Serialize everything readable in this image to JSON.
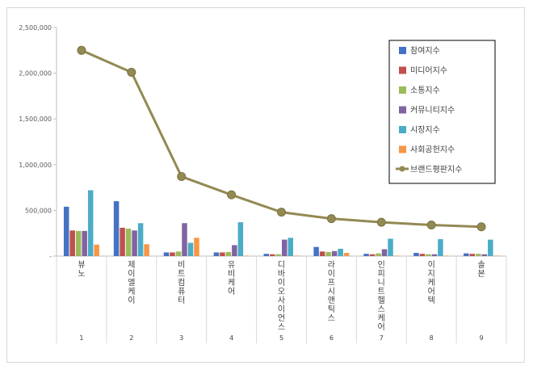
{
  "chart_data": {
    "type": "bar",
    "title": "",
    "xlabel": "",
    "ylabel": "",
    "ylim": [
      0,
      2500000
    ],
    "yticks": [
      "-",
      "500,000",
      "1,000,000",
      "1,500,000",
      "2,000,000",
      "2,500,000"
    ],
    "ytick_values": [
      0,
      500000,
      1000000,
      1500000,
      2000000,
      2500000
    ],
    "categories": [
      "뷰노",
      "제이엘케이",
      "비트컴퓨터",
      "유비케어",
      "디바이오사이언스",
      "라이프시맨틱스",
      "인피니트헬스케어",
      "이지케어텍",
      "솔본"
    ],
    "ranks": [
      "1",
      "2",
      "3",
      "4",
      "5",
      "6",
      "7",
      "8",
      "9"
    ],
    "legend_position": "top-right",
    "grid": false,
    "series": [
      {
        "name": "참여지수",
        "color": "#4472c4",
        "values": [
          540000,
          600000,
          40000,
          40000,
          25000,
          100000,
          25000,
          35000,
          30000
        ]
      },
      {
        "name": "미디어지수",
        "color": "#c0504d",
        "values": [
          280000,
          310000,
          40000,
          40000,
          20000,
          50000,
          20000,
          25000,
          25000
        ]
      },
      {
        "name": "소통지수",
        "color": "#9bbb59",
        "values": [
          275000,
          300000,
          50000,
          45000,
          20000,
          45000,
          30000,
          20000,
          25000
        ]
      },
      {
        "name": "커뮤니티지수",
        "color": "#8064a2",
        "values": [
          275000,
          280000,
          360000,
          120000,
          180000,
          55000,
          75000,
          20000,
          20000
        ]
      },
      {
        "name": "시장지수",
        "color": "#4bacc6",
        "values": [
          720000,
          360000,
          145000,
          370000,
          200000,
          80000,
          190000,
          185000,
          180000
        ]
      },
      {
        "name": "사회공헌지수",
        "color": "#f79646",
        "values": [
          125000,
          130000,
          200000,
          5000,
          5000,
          35000,
          5000,
          5000,
          5000
        ]
      }
    ],
    "line_series": {
      "name": "브랜드평판지수",
      "color": "#938953",
      "values": [
        2250000,
        2010000,
        870000,
        670000,
        480000,
        410000,
        370000,
        340000,
        320000
      ]
    }
  }
}
